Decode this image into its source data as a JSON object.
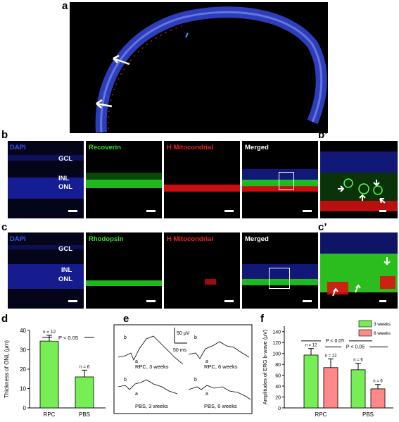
{
  "panel_labels": {
    "a": "a",
    "b": "b",
    "bp": "b’",
    "c": "c",
    "cp": "c’",
    "d": "d",
    "e": "e",
    "f": "f"
  },
  "row_b": {
    "dapi": "DAPI",
    "gcl": "GCL",
    "inl": "INL",
    "onl": "ONL",
    "marker": "Recoverin",
    "mito": "H Mitocondrial",
    "merged": "Merged"
  },
  "row_c": {
    "dapi": "DAPI",
    "gcl": "GCL",
    "inl": "INL",
    "onl": "ONL",
    "marker": "Rhodopsin",
    "mito": "H Mitocondrial",
    "merged": "Merged"
  },
  "colors": {
    "dapi": "#2233cc",
    "green": "#33dd33",
    "red": "#ee2222",
    "bar_green": "#77ee55",
    "bar_red": "#ff8888"
  },
  "chart_data": [
    {
      "type": "bar",
      "panel": "d",
      "categories": [
        "RPC",
        "PBS"
      ],
      "values": [
        34.5,
        16
      ],
      "errors": [
        3,
        3.5
      ],
      "n_labels": [
        "n = 12",
        "n = 6"
      ],
      "significance": "P < 0.05",
      "ylabel": "Thickness of ONL (μm)",
      "ylim": [
        0,
        40
      ],
      "yticks": [
        "0",
        "10",
        "20",
        "30",
        "40"
      ]
    },
    {
      "type": "line",
      "panel": "e",
      "traces": [
        "RPC, 3 weeks",
        "RPC, 6 weeks",
        "PBS, 3 weeks",
        "PBS, 6 weeks"
      ],
      "marker_a": "a",
      "marker_b": "b",
      "scale_y": "50 μV",
      "scale_x": "50 ms"
    },
    {
      "type": "bar",
      "panel": "f",
      "categories": [
        "RPC",
        "PBS"
      ],
      "series": [
        {
          "name": "3 weeks",
          "values": [
            97,
            70
          ],
          "errors": [
            12,
            12
          ],
          "n_labels": [
            "n = 12",
            "n = 6"
          ]
        },
        {
          "name": "6 weeks",
          "values": [
            74,
            35
          ],
          "errors": [
            16,
            8
          ],
          "n_labels": [
            "n = 12",
            "n = 6"
          ]
        }
      ],
      "significance": [
        "P < 0.05",
        "P < 0.05"
      ],
      "ylabel": "Amplitudes of ERG b-wave (μV)",
      "ylim": [
        0,
        150
      ],
      "yticks": [
        "0",
        "20",
        "40",
        "60",
        "80",
        "100",
        "120",
        "140"
      ],
      "legend_position": "top-right"
    }
  ]
}
